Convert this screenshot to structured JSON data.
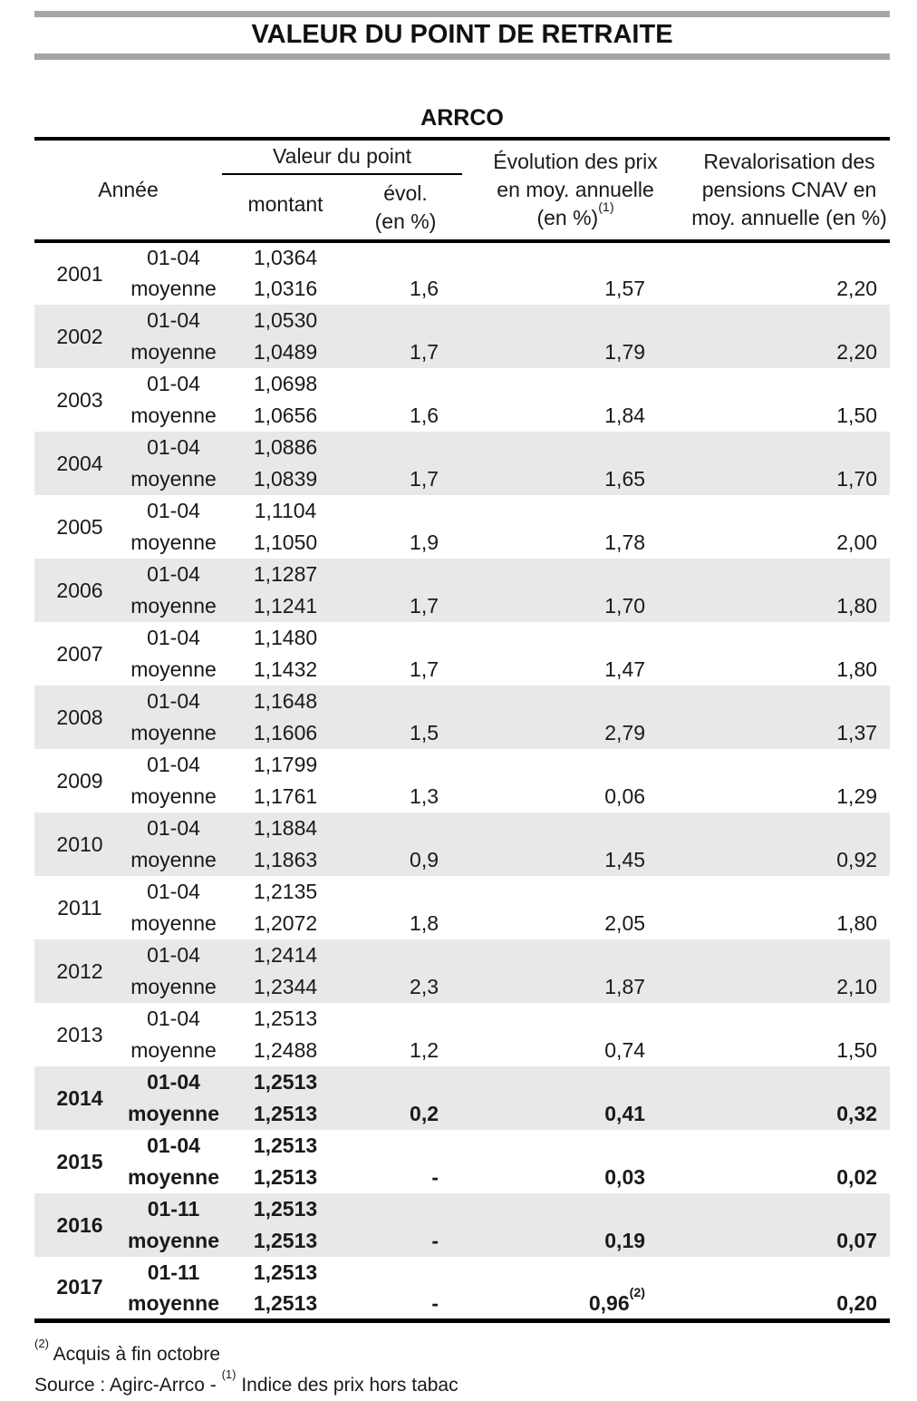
{
  "page": {
    "title": "VALEUR DU POINT DE RETRAITE",
    "subtitle": "ARRCO"
  },
  "table": {
    "headers": {
      "annee": "Année",
      "valeur_du_point": "Valeur du point",
      "montant": "montant",
      "evol_line1": "évol.",
      "evol_line2": "(en %)",
      "prix_line1": "Évolution des prix",
      "prix_line2": "en moy. annuelle",
      "prix_line3": "(en %)",
      "prix_sup": "(1)",
      "cnav_line1": "Revalorisation des",
      "cnav_line2": "pensions CNAV en",
      "cnav_line3": "moy. annuelle (en %)"
    },
    "rows": [
      {
        "year": "2001",
        "period1": "01-04",
        "montant1": "1,0364",
        "period2": "moyenne",
        "montant2": "1,0316",
        "evol": "1,6",
        "prix": "1,57",
        "prix_sup": "",
        "cnav": "2,20",
        "shaded": false,
        "bold": false
      },
      {
        "year": "2002",
        "period1": "01-04",
        "montant1": "1,0530",
        "period2": "moyenne",
        "montant2": "1,0489",
        "evol": "1,7",
        "prix": "1,79",
        "prix_sup": "",
        "cnav": "2,20",
        "shaded": true,
        "bold": false
      },
      {
        "year": "2003",
        "period1": "01-04",
        "montant1": "1,0698",
        "period2": "moyenne",
        "montant2": "1,0656",
        "evol": "1,6",
        "prix": "1,84",
        "prix_sup": "",
        "cnav": "1,50",
        "shaded": false,
        "bold": false
      },
      {
        "year": "2004",
        "period1": "01-04",
        "montant1": "1,0886",
        "period2": "moyenne",
        "montant2": "1,0839",
        "evol": "1,7",
        "prix": "1,65",
        "prix_sup": "",
        "cnav": "1,70",
        "shaded": true,
        "bold": false
      },
      {
        "year": "2005",
        "period1": "01-04",
        "montant1": "1,1104",
        "period2": "moyenne",
        "montant2": "1,1050",
        "evol": "1,9",
        "prix": "1,78",
        "prix_sup": "",
        "cnav": "2,00",
        "shaded": false,
        "bold": false
      },
      {
        "year": "2006",
        "period1": "01-04",
        "montant1": "1,1287",
        "period2": "moyenne",
        "montant2": "1,1241",
        "evol": "1,7",
        "prix": "1,70",
        "prix_sup": "",
        "cnav": "1,80",
        "shaded": true,
        "bold": false
      },
      {
        "year": "2007",
        "period1": "01-04",
        "montant1": "1,1480",
        "period2": "moyenne",
        "montant2": "1,1432",
        "evol": "1,7",
        "prix": "1,47",
        "prix_sup": "",
        "cnav": "1,80",
        "shaded": false,
        "bold": false
      },
      {
        "year": "2008",
        "period1": "01-04",
        "montant1": "1,1648",
        "period2": "moyenne",
        "montant2": "1,1606",
        "evol": "1,5",
        "prix": "2,79",
        "prix_sup": "",
        "cnav": "1,37",
        "shaded": true,
        "bold": false
      },
      {
        "year": "2009",
        "period1": "01-04",
        "montant1": "1,1799",
        "period2": "moyenne",
        "montant2": "1,1761",
        "evol": "1,3",
        "prix": "0,06",
        "prix_sup": "",
        "cnav": "1,29",
        "shaded": false,
        "bold": false
      },
      {
        "year": "2010",
        "period1": "01-04",
        "montant1": "1,1884",
        "period2": "moyenne",
        "montant2": "1,1863",
        "evol": "0,9",
        "prix": "1,45",
        "prix_sup": "",
        "cnav": "0,92",
        "shaded": true,
        "bold": false
      },
      {
        "year": "2011",
        "period1": "01-04",
        "montant1": "1,2135",
        "period2": "moyenne",
        "montant2": "1,2072",
        "evol": "1,8",
        "prix": "2,05",
        "prix_sup": "",
        "cnav": "1,80",
        "shaded": false,
        "bold": false
      },
      {
        "year": "2012",
        "period1": "01-04",
        "montant1": "1,2414",
        "period2": "moyenne",
        "montant2": "1,2344",
        "evol": "2,3",
        "prix": "1,87",
        "prix_sup": "",
        "cnav": "2,10",
        "shaded": true,
        "bold": false
      },
      {
        "year": "2013",
        "period1": "01-04",
        "montant1": "1,2513",
        "period2": "moyenne",
        "montant2": "1,2488",
        "evol": "1,2",
        "prix": "0,74",
        "prix_sup": "",
        "cnav": "1,50",
        "shaded": false,
        "bold": false
      },
      {
        "year": "2014",
        "period1": "01-04",
        "montant1": "1,2513",
        "period2": "moyenne",
        "montant2": "1,2513",
        "evol": "0,2",
        "prix": "0,41",
        "prix_sup": "",
        "cnav": "0,32",
        "shaded": true,
        "bold": true
      },
      {
        "year": "2015",
        "period1": "01-04",
        "montant1": "1,2513",
        "period2": "moyenne",
        "montant2": "1,2513",
        "evol": "-",
        "prix": "0,03",
        "prix_sup": "",
        "cnav": "0,02",
        "shaded": false,
        "bold": true
      },
      {
        "year": "2016",
        "period1": "01-11",
        "montant1": "1,2513",
        "period2": "moyenne",
        "montant2": "1,2513",
        "evol": "-",
        "prix": "0,19",
        "prix_sup": "",
        "cnav": "0,07",
        "shaded": true,
        "bold": true
      },
      {
        "year": "2017",
        "period1": "01-11",
        "montant1": "1,2513",
        "period2": "moyenne",
        "montant2": "1,2513",
        "evol": "-",
        "prix": "0,96",
        "prix_sup": "(2)",
        "cnav": "0,20",
        "shaded": false,
        "bold": true
      }
    ]
  },
  "footnotes": {
    "note2_sup": "(2)",
    "note2_text": " Acquis à fin octobre",
    "source_prefix": "Source : Agirc-Arrco - ",
    "source_sup": "(1)",
    "source_text": " Indice des prix hors tabac"
  },
  "colors": {
    "rule_gray": "#a6a6a6",
    "row_shade_gray": "#e8e8e8",
    "text": "#1a1a1a"
  }
}
